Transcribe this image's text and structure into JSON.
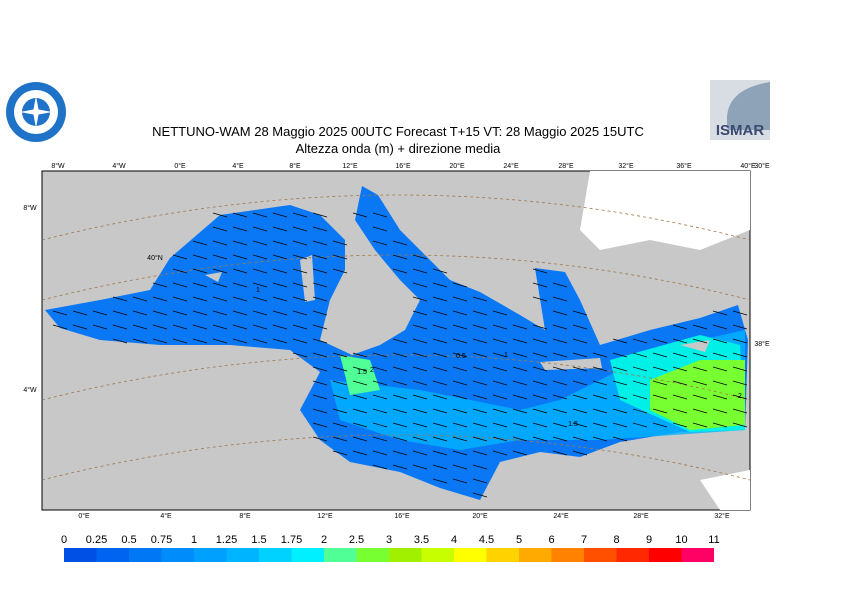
{
  "header": {
    "title": "NETTUNO-WAM  28   Maggio  2025 00UTC Forecast T+15 VT: 28   Maggio  2025 15UTC",
    "subtitle": "Altezza onda (m) + direzione media",
    "logo_right": "ISMAR"
  },
  "map": {
    "top_labels": [
      "8°W",
      "4°W",
      "0°E",
      "4°E",
      "8°E",
      "12°E",
      "16°E",
      "20°E",
      "24°E",
      "28°E",
      "32°E",
      "36°E",
      "40°E",
      "30°E"
    ],
    "bottom_labels": [
      "0°E",
      "4°E",
      "8°E",
      "12°E",
      "16°E",
      "20°E",
      "24°E",
      "28°E",
      "32°E"
    ],
    "left_labels": [
      "8°W",
      "40°N",
      "4°W"
    ],
    "right_labels": [
      "38°E"
    ],
    "contour_labels": [
      "1",
      "1.5",
      "2",
      "0.5",
      "1",
      "1.5",
      "2"
    ]
  },
  "colorbar": {
    "ticks": [
      0,
      0.25,
      0.5,
      0.75,
      1,
      1.25,
      1.5,
      1.75,
      2,
      2.5,
      3,
      3.5,
      4,
      4.5,
      5,
      6,
      7,
      8,
      9,
      10,
      11
    ],
    "colors": [
      "#0050e6",
      "#0064f0",
      "#0078f5",
      "#008cfa",
      "#00a0ff",
      "#00b4ff",
      "#00d2ff",
      "#00f0ff",
      "#50ff96",
      "#78ff32",
      "#a0f000",
      "#c8ff00",
      "#ffff00",
      "#ffd200",
      "#ffaa00",
      "#ff8200",
      "#ff5000",
      "#ff2800",
      "#ff0000",
      "#ff0064",
      "#ff14c8"
    ]
  }
}
